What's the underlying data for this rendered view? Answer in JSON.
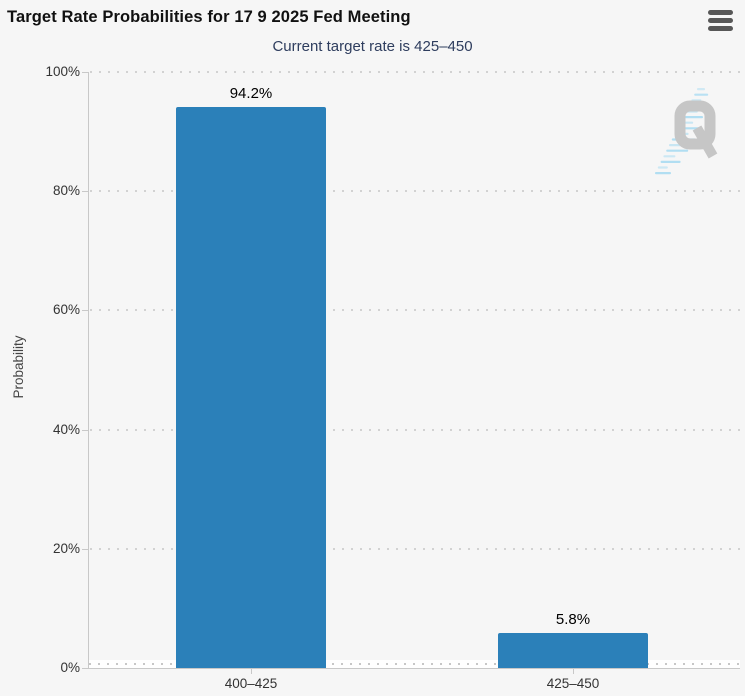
{
  "header": {
    "title": "Target Rate Probabilities for 17 9 2025 Fed Meeting"
  },
  "chart_data": {
    "type": "bar",
    "title": "Target Rate Probabilities for 17 9 2025 Fed Meeting",
    "subtitle": "Current target rate is 425–450",
    "xlabel": "",
    "ylabel": "Probability",
    "categories": [
      "400–425",
      "425–450"
    ],
    "values": [
      94.2,
      5.8
    ],
    "value_labels": [
      "94.2%",
      "5.8%"
    ],
    "yticks": [
      0,
      20,
      40,
      60,
      80,
      100
    ],
    "ytick_labels": [
      "0%",
      "20%",
      "40%",
      "60%",
      "80%",
      "100%"
    ],
    "ylim": [
      0,
      100
    ],
    "grid": "horizontal-dotted",
    "legend": "none",
    "bar_color": "#2b80b9",
    "watermark": "quikstrike-q-logo"
  },
  "icons": {
    "menu": "hamburger-menu-icon"
  },
  "colors": {
    "background": "#f6f6f6",
    "bar": "#2b80b9",
    "title": "#111111",
    "subtitle": "#2e3d5e",
    "axis": "#c8c8c8",
    "grid_dot": "#d2d2d2",
    "tick_label": "#333333",
    "watermark_q": "#c6c6c6",
    "watermark_dash": "#aadcf2"
  }
}
